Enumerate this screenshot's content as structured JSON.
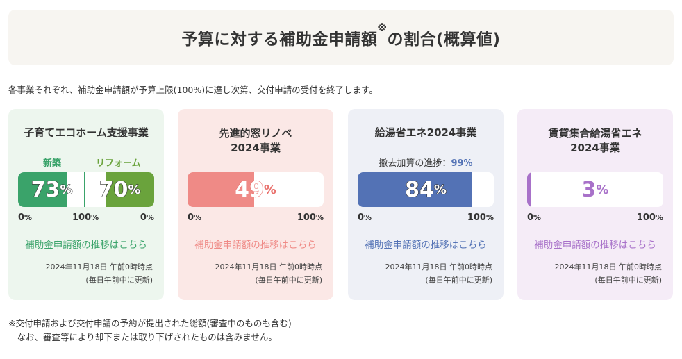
{
  "header": {
    "title": "予算に対する補助金申請額",
    "mark": "※",
    "title_suffix": "の割合(概算値)"
  },
  "intro": "各事業それぞれ、補助金申請額が予算上限(100%)に達し次第、交付申請の受付を終了します。",
  "cards": [
    {
      "title": "子育てエコホーム支援事業",
      "sub_new": "新築",
      "sub_reform": "リフォーム",
      "new_value": "73",
      "reform_value": "70",
      "pct": "%",
      "new_fraction": 0.73,
      "reform_fraction": 0.7,
      "scale_left": "0",
      "scale_mid": "100",
      "scale_right": "0",
      "scale_unit": "%",
      "link": "補助金申請額の推移はこちら",
      "date": "2024年11月18日 午前0時時点",
      "note": "(毎日午前中に更新)",
      "color_new": "#3aa36a",
      "color_reform": "#6aa33c"
    },
    {
      "title_line1": "先進的窓リノベ",
      "title_line2": "2024事業",
      "value": "49",
      "pct": "%",
      "fraction": 0.49,
      "scale_left": "0",
      "scale_right": "100",
      "scale_unit": "%",
      "link": "補助金申請額の推移はこちら",
      "date": "2024年11月18日 午前0時時点",
      "note": "(毎日午前中に更新)",
      "color": "#ef8a86"
    },
    {
      "title": "給湯省エネ2024事業",
      "progress_label": "撤去加算の進捗：",
      "progress_value": "99%",
      "value": "84",
      "pct": "%",
      "fraction": 0.84,
      "scale_left": "0",
      "scale_right": "100",
      "scale_unit": "%",
      "link": "補助金申請額の推移はこちら",
      "date": "2024年11月18日 午前0時時点",
      "note": "(毎日午前中に更新)",
      "color": "#5372b5"
    },
    {
      "title_line1": "賃貸集合給湯省エネ",
      "title_line2": "2024事業",
      "value": "3",
      "pct": "%",
      "fraction": 0.03,
      "scale_left": "0",
      "scale_right": "100",
      "scale_unit": "%",
      "link": "補助金申請額の推移はこちら",
      "date": "2024年11月18日 午前0時時点",
      "note": "(毎日午前中に更新)",
      "color": "#a871c9"
    }
  ],
  "footnote": {
    "line1": "※交付申請および交付申請の予約が提出された総額(審査中のものも含む)",
    "line2": "　なお、審査等により却下または取り下げされたものは含みません。"
  }
}
